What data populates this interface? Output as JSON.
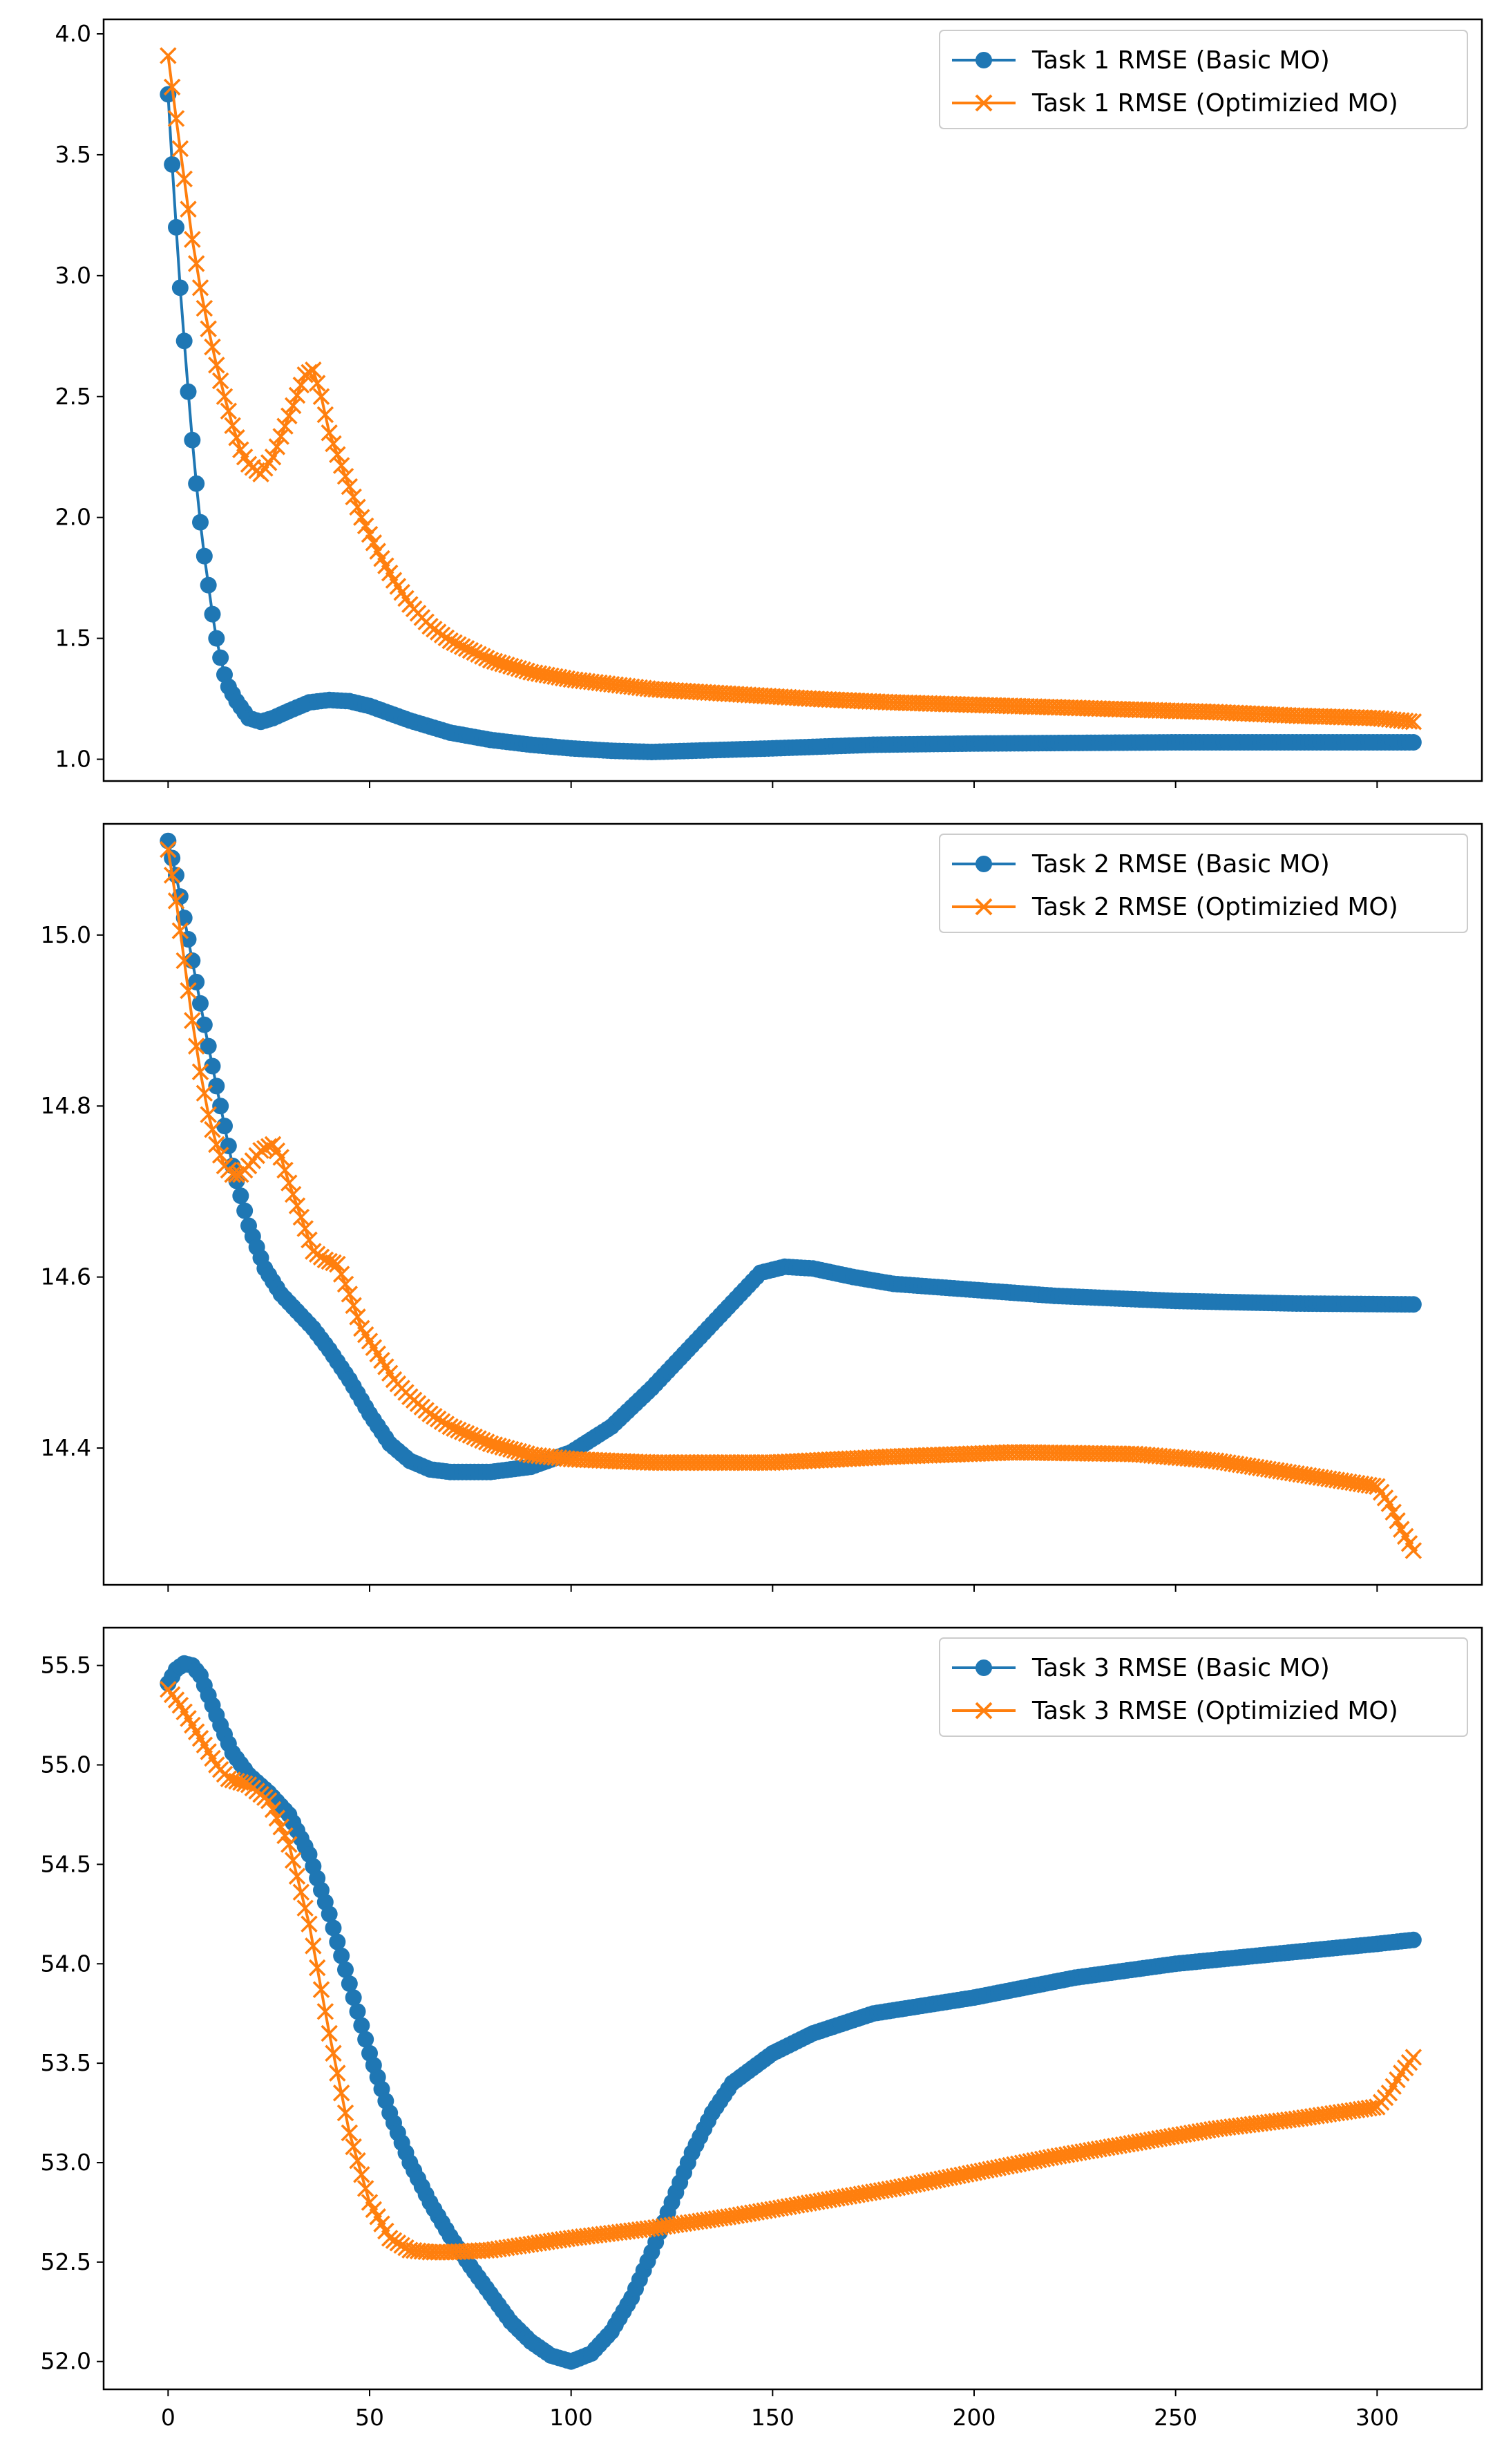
{
  "colors": {
    "basic": "#1f77b4",
    "optimized": "#ff7f0e"
  },
  "chart_data": [
    {
      "type": "line",
      "title": "",
      "xlabel": "",
      "ylabel": "",
      "xlim": [
        -16,
        326
      ],
      "ylim": [
        0.91,
        4.06
      ],
      "yticks": [
        1.0,
        1.5,
        2.0,
        2.5,
        3.0,
        3.5,
        4.0
      ],
      "ytick_labels": [
        "1.0",
        "1.5",
        "2.0",
        "2.5",
        "3.0",
        "3.5",
        "4.0"
      ],
      "xticks": [
        0,
        50,
        100,
        150,
        200,
        250,
        300
      ],
      "xtick_labels": [],
      "legend_position": "top-right",
      "series": [
        {
          "name": "Task 1 RMSE (Basic MO)",
          "marker": "o",
          "x_range": [
            0,
            309
          ],
          "points": [
            [
              0,
              3.75
            ],
            [
              1,
              3.46
            ],
            [
              2,
              3.2
            ],
            [
              3,
              2.95
            ],
            [
              4,
              2.73
            ],
            [
              5,
              2.52
            ],
            [
              6,
              2.32
            ],
            [
              7,
              2.14
            ],
            [
              8,
              1.98
            ],
            [
              9,
              1.84
            ],
            [
              10,
              1.72
            ],
            [
              11,
              1.6
            ],
            [
              12,
              1.5
            ],
            [
              13,
              1.42
            ],
            [
              14,
              1.35
            ],
            [
              15,
              1.3
            ],
            [
              17,
              1.24
            ],
            [
              20,
              1.17
            ],
            [
              23,
              1.155
            ],
            [
              26,
              1.17
            ],
            [
              30,
              1.2
            ],
            [
              35,
              1.235
            ],
            [
              40,
              1.245
            ],
            [
              45,
              1.24
            ],
            [
              50,
              1.22
            ],
            [
              55,
              1.19
            ],
            [
              60,
              1.16
            ],
            [
              65,
              1.135
            ],
            [
              70,
              1.11
            ],
            [
              80,
              1.08
            ],
            [
              90,
              1.06
            ],
            [
              100,
              1.045
            ],
            [
              110,
              1.035
            ],
            [
              120,
              1.03
            ],
            [
              130,
              1.035
            ],
            [
              150,
              1.045
            ],
            [
              175,
              1.06
            ],
            [
              200,
              1.065
            ],
            [
              250,
              1.07
            ],
            [
              309,
              1.07
            ]
          ]
        },
        {
          "name": "Task 1 RMSE (Optimizied MO)",
          "marker": "x",
          "x_range": [
            0,
            309
          ],
          "points": [
            [
              0,
              3.91
            ],
            [
              2,
              3.65
            ],
            [
              4,
              3.4
            ],
            [
              6,
              3.15
            ],
            [
              8,
              2.95
            ],
            [
              10,
              2.78
            ],
            [
              12,
              2.63
            ],
            [
              14,
              2.5
            ],
            [
              16,
              2.38
            ],
            [
              18,
              2.28
            ],
            [
              20,
              2.22
            ],
            [
              23,
              2.18
            ],
            [
              26,
              2.25
            ],
            [
              30,
              2.42
            ],
            [
              34,
              2.59
            ],
            [
              36,
              2.61
            ],
            [
              38,
              2.5
            ],
            [
              40,
              2.35
            ],
            [
              44,
              2.17
            ],
            [
              48,
              2.0
            ],
            [
              52,
              1.86
            ],
            [
              56,
              1.74
            ],
            [
              60,
              1.64
            ],
            [
              65,
              1.55
            ],
            [
              70,
              1.49
            ],
            [
              80,
              1.41
            ],
            [
              90,
              1.36
            ],
            [
              100,
              1.33
            ],
            [
              120,
              1.29
            ],
            [
              140,
              1.27
            ],
            [
              160,
              1.25
            ],
            [
              180,
              1.235
            ],
            [
              200,
              1.225
            ],
            [
              220,
              1.215
            ],
            [
              240,
              1.205
            ],
            [
              260,
              1.195
            ],
            [
              280,
              1.18
            ],
            [
              300,
              1.17
            ],
            [
              309,
              1.155
            ]
          ]
        }
      ]
    },
    {
      "type": "line",
      "title": "",
      "xlabel": "",
      "ylabel": "",
      "xlim": [
        -16,
        326
      ],
      "ylim": [
        14.24,
        15.13
      ],
      "yticks": [
        14.4,
        14.6,
        14.8,
        15.0
      ],
      "ytick_labels": [
        "14.4",
        "14.6",
        "14.8",
        "15.0"
      ],
      "xticks": [
        0,
        50,
        100,
        150,
        200,
        250,
        300
      ],
      "xtick_labels": [],
      "legend_position": "top-right",
      "series": [
        {
          "name": "Task 2 RMSE (Basic MO)",
          "marker": "o",
          "x_range": [
            0,
            309
          ],
          "points": [
            [
              0,
              15.11
            ],
            [
              2,
              15.07
            ],
            [
              4,
              15.02
            ],
            [
              6,
              14.97
            ],
            [
              8,
              14.92
            ],
            [
              10,
              14.87
            ],
            [
              13,
              14.8
            ],
            [
              16,
              14.73
            ],
            [
              20,
              14.66
            ],
            [
              24,
              14.61
            ],
            [
              28,
              14.58
            ],
            [
              32,
              14.56
            ],
            [
              36,
              14.54
            ],
            [
              40,
              14.515
            ],
            [
              45,
              14.48
            ],
            [
              50,
              14.44
            ],
            [
              55,
              14.405
            ],
            [
              60,
              14.385
            ],
            [
              65,
              14.375
            ],
            [
              70,
              14.372
            ],
            [
              80,
              14.372
            ],
            [
              90,
              14.378
            ],
            [
              100,
              14.395
            ],
            [
              110,
              14.425
            ],
            [
              120,
              14.47
            ],
            [
              130,
              14.52
            ],
            [
              140,
              14.57
            ],
            [
              147,
              14.605
            ],
            [
              153,
              14.612
            ],
            [
              160,
              14.61
            ],
            [
              170,
              14.6
            ],
            [
              180,
              14.592
            ],
            [
              200,
              14.585
            ],
            [
              220,
              14.578
            ],
            [
              250,
              14.572
            ],
            [
              280,
              14.569
            ],
            [
              309,
              14.568
            ]
          ]
        },
        {
          "name": "Task 2 RMSE (Optimizied MO)",
          "marker": "x",
          "x_range": [
            0,
            309
          ],
          "points": [
            [
              0,
              15.1
            ],
            [
              2,
              15.04
            ],
            [
              4,
              14.97
            ],
            [
              6,
              14.9
            ],
            [
              8,
              14.84
            ],
            [
              10,
              14.79
            ],
            [
              12,
              14.755
            ],
            [
              14,
              14.73
            ],
            [
              16,
              14.72
            ],
            [
              18,
              14.72
            ],
            [
              20,
              14.73
            ],
            [
              23,
              14.748
            ],
            [
              26,
              14.755
            ],
            [
              28,
              14.74
            ],
            [
              30,
              14.71
            ],
            [
              33,
              14.67
            ],
            [
              36,
              14.63
            ],
            [
              39,
              14.62
            ],
            [
              42,
              14.615
            ],
            [
              45,
              14.58
            ],
            [
              48,
              14.54
            ],
            [
              52,
              14.51
            ],
            [
              56,
              14.48
            ],
            [
              60,
              14.46
            ],
            [
              65,
              14.44
            ],
            [
              70,
              14.425
            ],
            [
              80,
              14.405
            ],
            [
              90,
              14.392
            ],
            [
              100,
              14.387
            ],
            [
              120,
              14.383
            ],
            [
              150,
              14.383
            ],
            [
              180,
              14.39
            ],
            [
              210,
              14.395
            ],
            [
              240,
              14.393
            ],
            [
              260,
              14.385
            ],
            [
              280,
              14.37
            ],
            [
              300,
              14.355
            ],
            [
              303,
              14.335
            ],
            [
              306,
              14.305
            ],
            [
              309,
              14.28
            ]
          ]
        }
      ]
    },
    {
      "type": "line",
      "title": "",
      "xlabel": "",
      "ylabel": "",
      "xlim": [
        -16,
        326
      ],
      "ylim": [
        51.86,
        55.69
      ],
      "yticks": [
        52.0,
        52.5,
        53.0,
        53.5,
        54.0,
        54.5,
        55.0,
        55.5
      ],
      "ytick_labels": [
        "52.0",
        "52.5",
        "53.0",
        "53.5",
        "54.0",
        "54.5",
        "55.0",
        "55.5"
      ],
      "xticks": [
        0,
        50,
        100,
        150,
        200,
        250,
        300
      ],
      "xtick_labels": [
        "0",
        "50",
        "100",
        "150",
        "200",
        "250",
        "300"
      ],
      "legend_position": "top-right",
      "series": [
        {
          "name": "Task 3 RMSE (Basic MO)",
          "marker": "o",
          "x_range": [
            0,
            309
          ],
          "points": [
            [
              0,
              55.41
            ],
            [
              2,
              55.48
            ],
            [
              4,
              55.51
            ],
            [
              6,
              55.5
            ],
            [
              8,
              55.45
            ],
            [
              10,
              55.35
            ],
            [
              13,
              55.2
            ],
            [
              16,
              55.06
            ],
            [
              20,
              54.95
            ],
            [
              25,
              54.86
            ],
            [
              30,
              54.75
            ],
            [
              35,
              54.55
            ],
            [
              40,
              54.25
            ],
            [
              45,
              53.9
            ],
            [
              50,
              53.55
            ],
            [
              55,
              53.25
            ],
            [
              60,
              53.0
            ],
            [
              65,
              52.8
            ],
            [
              70,
              52.63
            ],
            [
              75,
              52.48
            ],
            [
              80,
              52.34
            ],
            [
              85,
              52.2
            ],
            [
              90,
              52.1
            ],
            [
              95,
              52.03
            ],
            [
              100,
              52.0
            ],
            [
              105,
              52.04
            ],
            [
              110,
              52.15
            ],
            [
              115,
              52.32
            ],
            [
              120,
              52.55
            ],
            [
              125,
              52.8
            ],
            [
              130,
              53.05
            ],
            [
              135,
              53.25
            ],
            [
              140,
              53.4
            ],
            [
              150,
              53.55
            ],
            [
              160,
              53.65
            ],
            [
              175,
              53.75
            ],
            [
              200,
              53.83
            ],
            [
              225,
              53.93
            ],
            [
              250,
              54.0
            ],
            [
              275,
              54.05
            ],
            [
              300,
              54.1
            ],
            [
              309,
              54.12
            ]
          ]
        },
        {
          "name": "Task 3 RMSE (Optimizied MO)",
          "marker": "x",
          "x_range": [
            0,
            309
          ],
          "points": [
            [
              0,
              55.38
            ],
            [
              3,
              55.3
            ],
            [
              6,
              55.2
            ],
            [
              9,
              55.1
            ],
            [
              12,
              55.0
            ],
            [
              15,
              54.93
            ],
            [
              20,
              54.9
            ],
            [
              25,
              54.82
            ],
            [
              30,
              54.6
            ],
            [
              35,
              54.2
            ],
            [
              40,
              53.65
            ],
            [
              45,
              53.15
            ],
            [
              50,
              52.8
            ],
            [
              55,
              52.62
            ],
            [
              60,
              52.56
            ],
            [
              65,
              52.55
            ],
            [
              70,
              52.55
            ],
            [
              80,
              52.56
            ],
            [
              100,
              52.62
            ],
            [
              120,
              52.67
            ],
            [
              140,
              52.73
            ],
            [
              160,
              52.8
            ],
            [
              180,
              52.87
            ],
            [
              200,
              52.95
            ],
            [
              220,
              53.03
            ],
            [
              240,
              53.1
            ],
            [
              260,
              53.17
            ],
            [
              280,
              53.22
            ],
            [
              300,
              53.28
            ],
            [
              303,
              53.35
            ],
            [
              306,
              53.45
            ],
            [
              309,
              53.53
            ]
          ]
        }
      ]
    }
  ]
}
